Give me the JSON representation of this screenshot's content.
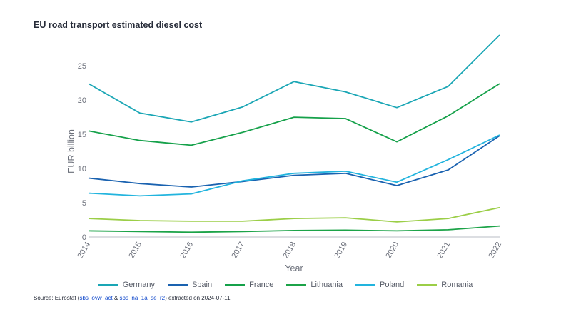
{
  "chart_data": {
    "type": "line",
    "title": "EU road transport estimated diesel cost",
    "xlabel": "Year",
    "ylabel": "EUR billion",
    "x": [
      "2014",
      "2015",
      "2016",
      "2017",
      "2018",
      "2019",
      "2020",
      "2021",
      "2022"
    ],
    "yticks": [
      "0",
      "5",
      "10",
      "15",
      "20",
      "25"
    ],
    "ylim": [
      0,
      29.6
    ],
    "grid": false,
    "legend": "bottom",
    "series": [
      {
        "name": "Germany",
        "color": "#1aa6b5",
        "values": [
          22.4,
          18.1,
          16.8,
          19.0,
          22.7,
          21.2,
          18.9,
          22.0,
          29.5
        ]
      },
      {
        "name": "Spain",
        "color": "#1a62b0",
        "values": [
          8.6,
          7.8,
          7.3,
          8.1,
          9.0,
          9.3,
          7.5,
          9.8,
          14.8
        ]
      },
      {
        "name": "France",
        "color": "#15a14a",
        "values": [
          15.5,
          14.1,
          13.4,
          15.3,
          17.5,
          17.3,
          13.9,
          17.7,
          22.4
        ]
      },
      {
        "name": "Lithuania",
        "color": "#1ca348",
        "values": [
          0.9,
          0.8,
          0.7,
          0.8,
          0.95,
          1.0,
          0.9,
          1.05,
          1.6
        ]
      },
      {
        "name": "Poland",
        "color": "#22b4de",
        "values": [
          6.4,
          6.0,
          6.3,
          8.2,
          9.3,
          9.6,
          8.0,
          11.3,
          14.9
        ]
      },
      {
        "name": "Romania",
        "color": "#9bce47",
        "values": [
          2.7,
          2.4,
          2.3,
          2.3,
          2.7,
          2.8,
          2.2,
          2.7,
          4.3
        ]
      }
    ]
  },
  "source": {
    "prefix": "Source: Eurostat (",
    "link1": "sbs_ovw_act",
    "amp": " & ",
    "link2": "sbs_na_1a_se_r2",
    "suffix": ") extracted on 2024-07-11"
  }
}
